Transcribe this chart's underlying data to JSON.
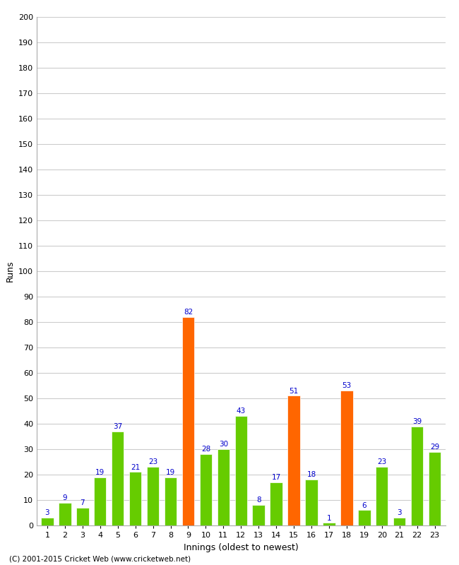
{
  "innings": [
    1,
    2,
    3,
    4,
    5,
    6,
    7,
    8,
    9,
    10,
    11,
    12,
    13,
    14,
    15,
    16,
    17,
    18,
    19,
    20,
    21,
    22,
    23
  ],
  "values": [
    3,
    9,
    7,
    19,
    37,
    21,
    23,
    19,
    82,
    28,
    30,
    43,
    8,
    17,
    51,
    18,
    1,
    53,
    6,
    23,
    3,
    39,
    29
  ],
  "colors": [
    "#66cc00",
    "#66cc00",
    "#66cc00",
    "#66cc00",
    "#66cc00",
    "#66cc00",
    "#66cc00",
    "#66cc00",
    "#ff6600",
    "#66cc00",
    "#66cc00",
    "#66cc00",
    "#66cc00",
    "#66cc00",
    "#ff6600",
    "#66cc00",
    "#66cc00",
    "#ff6600",
    "#66cc00",
    "#66cc00",
    "#66cc00",
    "#66cc00",
    "#66cc00"
  ],
  "label_colors": [
    "#0000cc",
    "#0000cc",
    "#0000cc",
    "#0000cc",
    "#0000cc",
    "#0000cc",
    "#0000cc",
    "#0000cc",
    "#0000cc",
    "#0000cc",
    "#0000cc",
    "#0000cc",
    "#0000cc",
    "#0000cc",
    "#0000cc",
    "#0000cc",
    "#0000cc",
    "#0000cc",
    "#0000cc",
    "#0000cc",
    "#0000cc",
    "#0000cc",
    "#0000cc"
  ],
  "xlabel": "Innings (oldest to newest)",
  "ylabel": "Runs",
  "ylim": [
    0,
    200
  ],
  "yticks": [
    0,
    10,
    20,
    30,
    40,
    50,
    60,
    70,
    80,
    90,
    100,
    110,
    120,
    130,
    140,
    150,
    160,
    170,
    180,
    190,
    200
  ],
  "footer": "(C) 2001-2015 Cricket Web (www.cricketweb.net)",
  "background_color": "#ffffff",
  "grid_color": "#cccccc",
  "label_fontsize": 7.5,
  "axis_label_fontsize": 9,
  "tick_fontsize": 8
}
